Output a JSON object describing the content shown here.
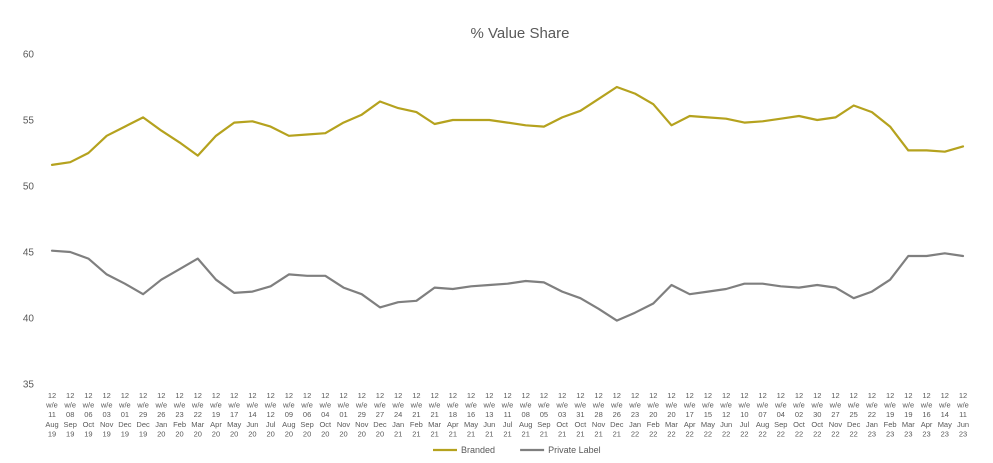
{
  "chart_data": {
    "type": "line",
    "title": "% Value Share",
    "xlabel": "",
    "ylabel": "",
    "ylim": [
      35,
      60
    ],
    "yticks": [
      35,
      40,
      45,
      50,
      55,
      60
    ],
    "grid": false,
    "legend_position": "bottom",
    "categories": [
      [
        "12",
        "w/e",
        "11",
        "Aug",
        "19"
      ],
      [
        "12",
        "w/e",
        "08",
        "Sep",
        "19"
      ],
      [
        "12",
        "w/e",
        "06",
        "Oct",
        "19"
      ],
      [
        "12",
        "w/e",
        "03",
        "Nov",
        "19"
      ],
      [
        "12",
        "w/e",
        "01",
        "Dec",
        "19"
      ],
      [
        "12",
        "w/e",
        "29",
        "Dec",
        "19"
      ],
      [
        "12",
        "w/e",
        "26",
        "Jan",
        "20"
      ],
      [
        "12",
        "w/e",
        "23",
        "Feb",
        "20"
      ],
      [
        "12",
        "w/e",
        "22",
        "Mar",
        "20"
      ],
      [
        "12",
        "w/e",
        "19",
        "Apr",
        "20"
      ],
      [
        "12",
        "w/e",
        "17",
        "May",
        "20"
      ],
      [
        "12",
        "w/e",
        "14",
        "Jun",
        "20"
      ],
      [
        "12",
        "w/e",
        "12",
        "Jul",
        "20"
      ],
      [
        "12",
        "w/e",
        "09",
        "Aug",
        "20"
      ],
      [
        "12",
        "w/e",
        "06",
        "Sep",
        "20"
      ],
      [
        "12",
        "w/e",
        "04",
        "Oct",
        "20"
      ],
      [
        "12",
        "w/e",
        "01",
        "Nov",
        "20"
      ],
      [
        "12",
        "w/e",
        "29",
        "Nov",
        "20"
      ],
      [
        "12",
        "w/e",
        "27",
        "Dec",
        "20"
      ],
      [
        "12",
        "w/e",
        "24",
        "Jan",
        "21"
      ],
      [
        "12",
        "w/e",
        "21",
        "Feb",
        "21"
      ],
      [
        "12",
        "w/e",
        "21",
        "Mar",
        "21"
      ],
      [
        "12",
        "w/e",
        "18",
        "Apr",
        "21"
      ],
      [
        "12",
        "w/e",
        "16",
        "May",
        "21"
      ],
      [
        "12",
        "w/e",
        "13",
        "Jun",
        "21"
      ],
      [
        "12",
        "w/e",
        "11",
        "Jul",
        "21"
      ],
      [
        "12",
        "w/e",
        "08",
        "Aug",
        "21"
      ],
      [
        "12",
        "w/e",
        "05",
        "Sep",
        "21"
      ],
      [
        "12",
        "w/e",
        "03",
        "Oct",
        "21"
      ],
      [
        "12",
        "w/e",
        "31",
        "Oct",
        "21"
      ],
      [
        "12",
        "w/e",
        "28",
        "Nov",
        "21"
      ],
      [
        "12",
        "w/e",
        "26",
        "Dec",
        "21"
      ],
      [
        "12",
        "w/e",
        "23",
        "Jan",
        "22"
      ],
      [
        "12",
        "w/e",
        "20",
        "Feb",
        "22"
      ],
      [
        "12",
        "w/e",
        "20",
        "Mar",
        "22"
      ],
      [
        "12",
        "w/e",
        "17",
        "Apr",
        "22"
      ],
      [
        "12",
        "w/e",
        "15",
        "May",
        "22"
      ],
      [
        "12",
        "w/e",
        "12",
        "Jun",
        "22"
      ],
      [
        "12",
        "w/e",
        "10",
        "Jul",
        "22"
      ],
      [
        "12",
        "w/e",
        "07",
        "Aug",
        "22"
      ],
      [
        "12",
        "w/e",
        "04",
        "Sep",
        "22"
      ],
      [
        "12",
        "w/e",
        "02",
        "Oct",
        "22"
      ],
      [
        "12",
        "w/e",
        "30",
        "Oct",
        "22"
      ],
      [
        "12",
        "w/e",
        "27",
        "Nov",
        "22"
      ],
      [
        "12",
        "w/e",
        "25",
        "Dec",
        "22"
      ],
      [
        "12",
        "w/e",
        "22",
        "Jan",
        "23"
      ],
      [
        "12",
        "w/e",
        "19",
        "Feb",
        "23"
      ],
      [
        "12",
        "w/e",
        "19",
        "Mar",
        "23"
      ],
      [
        "12",
        "w/e",
        "16",
        "Apr",
        "23"
      ],
      [
        "12",
        "w/e",
        "14",
        "May",
        "23"
      ],
      [
        "12",
        "w/e",
        "11",
        "Jun",
        "23"
      ]
    ],
    "series": [
      {
        "name": "Branded",
        "color": "#B5A21E",
        "values": [
          51.6,
          51.8,
          52.5,
          53.8,
          54.5,
          55.2,
          54.2,
          53.3,
          52.3,
          53.8,
          54.8,
          54.9,
          54.5,
          53.8,
          53.9,
          54.0,
          54.8,
          55.4,
          56.4,
          55.9,
          55.6,
          54.7,
          55.0,
          55.0,
          55.0,
          54.8,
          54.6,
          54.5,
          55.2,
          55.7,
          56.6,
          57.5,
          57.0,
          56.2,
          54.6,
          55.3,
          55.2,
          55.1,
          54.8,
          54.9,
          55.1,
          55.3,
          55.0,
          55.2,
          56.1,
          55.6,
          54.5,
          52.7,
          52.7,
          52.6,
          53.0
        ]
      },
      {
        "name": "Private Label",
        "color": "#7F7F7F",
        "values": [
          45.1,
          45.0,
          44.5,
          43.3,
          42.6,
          41.8,
          42.9,
          43.7,
          44.5,
          42.9,
          41.9,
          42.0,
          42.4,
          43.3,
          43.2,
          43.2,
          42.3,
          41.8,
          40.8,
          41.2,
          41.3,
          42.3,
          42.2,
          42.4,
          42.5,
          42.6,
          42.8,
          42.7,
          42.0,
          41.5,
          40.7,
          39.8,
          40.4,
          41.1,
          42.5,
          41.8,
          42.0,
          42.2,
          42.6,
          42.6,
          42.4,
          42.3,
          42.5,
          42.3,
          41.5,
          42.0,
          42.9,
          44.7,
          44.7,
          44.9,
          44.7
        ]
      }
    ]
  }
}
